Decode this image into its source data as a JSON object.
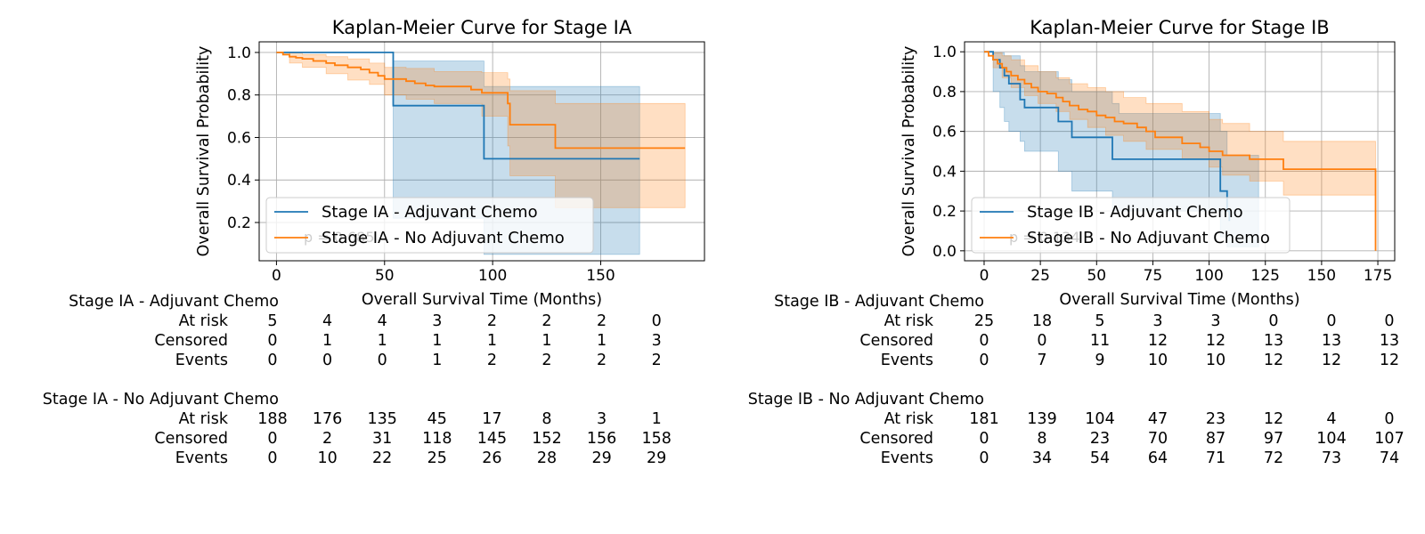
{
  "chart_data": [
    {
      "type": "line",
      "subtype": "kaplan-meier",
      "title": "Kaplan-Meier Curve for Stage IA",
      "xlabel": "Overall Survival Time (Months)",
      "ylabel": "Overall Survival Probability",
      "xlim": [
        -8,
        198
      ],
      "ylim": [
        0.02,
        1.05
      ],
      "xticks": [
        0,
        50,
        100,
        150
      ],
      "yticks": [
        0.2,
        0.4,
        0.6,
        0.8,
        1.0
      ],
      "ytick_labels": [
        "0.2",
        "0.4",
        "0.6",
        "0.8",
        "1.0"
      ],
      "grid": true,
      "legend_position": "lower-left",
      "p_value_label": "p = 0.685",
      "series": [
        {
          "name": "Stage IA - Adjuvant Chemo",
          "color": "#1f77b4",
          "steps": [
            [
              0,
              1.0
            ],
            [
              54,
              0.75
            ],
            [
              96,
              0.5
            ],
            [
              168,
              0.5
            ]
          ],
          "ci_upper": [
            [
              0,
              1.0
            ],
            [
              54,
              0.96
            ],
            [
              96,
              0.84
            ],
            [
              168,
              0.84
            ]
          ],
          "ci_lower": [
            [
              0,
              1.0
            ],
            [
              54,
              0.22
            ],
            [
              96,
              0.05
            ],
            [
              168,
              0.05
            ]
          ]
        },
        {
          "name": "Stage IA - No Adjuvant Chemo",
          "color": "#ff7f0e",
          "steps": [
            [
              0,
              1.0
            ],
            [
              3,
              0.99
            ],
            [
              6,
              0.98
            ],
            [
              9,
              0.975
            ],
            [
              12,
              0.97
            ],
            [
              17,
              0.96
            ],
            [
              23,
              0.95
            ],
            [
              27,
              0.94
            ],
            [
              33,
              0.93
            ],
            [
              39,
              0.92
            ],
            [
              43,
              0.905
            ],
            [
              47,
              0.89
            ],
            [
              50,
              0.875
            ],
            [
              60,
              0.865
            ],
            [
              64,
              0.855
            ],
            [
              69,
              0.845
            ],
            [
              73,
              0.84
            ],
            [
              90,
              0.825
            ],
            [
              95,
              0.81
            ],
            [
              107,
              0.76
            ],
            [
              108,
              0.66
            ],
            [
              129,
              0.55
            ],
            [
              189,
              0.55
            ]
          ],
          "ci_upper": [
            [
              0,
              1.0
            ],
            [
              6,
              0.998
            ],
            [
              12,
              0.99
            ],
            [
              23,
              0.98
            ],
            [
              33,
              0.97
            ],
            [
              43,
              0.95
            ],
            [
              50,
              0.93
            ],
            [
              60,
              0.925
            ],
            [
              73,
              0.91
            ],
            [
              95,
              0.905
            ],
            [
              107,
              0.875
            ],
            [
              108,
              0.82
            ],
            [
              129,
              0.76
            ],
            [
              189,
              0.76
            ]
          ],
          "ci_lower": [
            [
              0,
              1.0
            ],
            [
              6,
              0.95
            ],
            [
              12,
              0.93
            ],
            [
              23,
              0.9
            ],
            [
              33,
              0.87
            ],
            [
              43,
              0.85
            ],
            [
              50,
              0.8
            ],
            [
              60,
              0.78
            ],
            [
              73,
              0.76
            ],
            [
              95,
              0.7
            ],
            [
              107,
              0.56
            ],
            [
              108,
              0.42
            ],
            [
              129,
              0.27
            ],
            [
              189,
              0.27
            ]
          ]
        }
      ],
      "risk_table": {
        "time_points": [
          0,
          25,
          50,
          75,
          100,
          125,
          150,
          175
        ],
        "groups": [
          {
            "name": "Stage IA - Adjuvant Chemo",
            "rows": [
              {
                "label": "At risk",
                "values": [
                  "5",
                  "4",
                  "4",
                  "3",
                  "2",
                  "2",
                  "2",
                  "0"
                ]
              },
              {
                "label": "Censored",
                "values": [
                  "0",
                  "1",
                  "1",
                  "1",
                  "1",
                  "1",
                  "1",
                  "3"
                ]
              },
              {
                "label": "Events",
                "values": [
                  "0",
                  "0",
                  "0",
                  "1",
                  "2",
                  "2",
                  "2",
                  "2"
                ]
              }
            ]
          },
          {
            "name": "Stage IA - No Adjuvant Chemo",
            "rows": [
              {
                "label": "At risk",
                "values": [
                  "188",
                  "176",
                  "135",
                  "45",
                  "17",
                  "8",
                  "3",
                  "1"
                ]
              },
              {
                "label": "Censored",
                "values": [
                  "0",
                  "2",
                  "31",
                  "118",
                  "145",
                  "152",
                  "156",
                  "158"
                ]
              },
              {
                "label": "Events",
                "values": [
                  "0",
                  "10",
                  "22",
                  "25",
                  "26",
                  "28",
                  "29",
                  "29"
                ]
              }
            ]
          }
        ]
      }
    },
    {
      "type": "line",
      "subtype": "kaplan-meier",
      "title": "Kaplan-Meier Curve for Stage IB",
      "xlabel": "Overall Survival Time (Months)",
      "ylabel": "Overall Survival Probability",
      "xlim": [
        -8.7,
        182.5
      ],
      "ylim": [
        -0.05,
        1.05
      ],
      "xticks": [
        0,
        25,
        50,
        75,
        100,
        125,
        150,
        175
      ],
      "yticks": [
        0.0,
        0.2,
        0.4,
        0.6,
        0.8,
        1.0
      ],
      "ytick_labels": [
        "0.0",
        "0.2",
        "0.4",
        "0.6",
        "0.8",
        "1.0"
      ],
      "grid": true,
      "legend_position": "lower-left",
      "p_value_label": "p = 0.134",
      "series": [
        {
          "name": "Stage IB - Adjuvant Chemo",
          "color": "#1f77b4",
          "steps": [
            [
              0,
              1.0
            ],
            [
              4,
              0.96
            ],
            [
              7,
              0.92
            ],
            [
              9,
              0.88
            ],
            [
              11,
              0.84
            ],
            [
              16,
              0.76
            ],
            [
              18,
              0.72
            ],
            [
              33,
              0.65
            ],
            [
              39,
              0.57
            ],
            [
              57,
              0.46
            ],
            [
              105,
              0.3
            ],
            [
              108,
              0.2
            ],
            [
              109,
              0.15
            ]
          ],
          "ci_upper": [
            [
              0,
              1.0
            ],
            [
              4,
              0.995
            ],
            [
              9,
              0.98
            ],
            [
              16,
              0.93
            ],
            [
              18,
              0.9
            ],
            [
              33,
              0.86
            ],
            [
              39,
              0.8
            ],
            [
              57,
              0.74
            ],
            [
              60,
              0.69
            ],
            [
              105,
              0.6
            ],
            [
              108,
              0.48
            ],
            [
              122,
              0.48
            ]
          ],
          "ci_lower": [
            [
              0,
              1.0
            ],
            [
              4,
              0.8
            ],
            [
              7,
              0.72
            ],
            [
              9,
              0.65
            ],
            [
              11,
              0.6
            ],
            [
              16,
              0.55
            ],
            [
              18,
              0.5
            ],
            [
              33,
              0.4
            ],
            [
              39,
              0.3
            ],
            [
              57,
              0.2
            ],
            [
              105,
              0.07
            ],
            [
              108,
              0.02
            ],
            [
              122,
              0.02
            ]
          ]
        },
        {
          "name": "Stage IB - No Adjuvant Chemo",
          "color": "#ff7f0e",
          "steps": [
            [
              0,
              1.0
            ],
            [
              2,
              0.98
            ],
            [
              4,
              0.96
            ],
            [
              6,
              0.94
            ],
            [
              8,
              0.92
            ],
            [
              10,
              0.9
            ],
            [
              12,
              0.88
            ],
            [
              15,
              0.86
            ],
            [
              18,
              0.84
            ],
            [
              21,
              0.82
            ],
            [
              24,
              0.8
            ],
            [
              28,
              0.79
            ],
            [
              32,
              0.77
            ],
            [
              35,
              0.75
            ],
            [
              38,
              0.73
            ],
            [
              42,
              0.71
            ],
            [
              46,
              0.7
            ],
            [
              50,
              0.68
            ],
            [
              54,
              0.67
            ],
            [
              58,
              0.65
            ],
            [
              62,
              0.64
            ],
            [
              68,
              0.62
            ],
            [
              72,
              0.6
            ],
            [
              76,
              0.57
            ],
            [
              88,
              0.54
            ],
            [
              96,
              0.52
            ],
            [
              100,
              0.5
            ],
            [
              106,
              0.48
            ],
            [
              118,
              0.46
            ],
            [
              133,
              0.41
            ],
            [
              174,
              0.41
            ],
            [
              174,
              0.0
            ]
          ],
          "ci_upper": [
            [
              0,
              1.0
            ],
            [
              4,
              0.995
            ],
            [
              8,
              0.98
            ],
            [
              12,
              0.96
            ],
            [
              18,
              0.93
            ],
            [
              24,
              0.9
            ],
            [
              32,
              0.87
            ],
            [
              38,
              0.84
            ],
            [
              46,
              0.82
            ],
            [
              54,
              0.8
            ],
            [
              62,
              0.77
            ],
            [
              72,
              0.74
            ],
            [
              88,
              0.7
            ],
            [
              100,
              0.66
            ],
            [
              106,
              0.64
            ],
            [
              118,
              0.6
            ],
            [
              133,
              0.55
            ],
            [
              174,
              0.54
            ]
          ],
          "ci_lower": [
            [
              0,
              1.0
            ],
            [
              4,
              0.92
            ],
            [
              8,
              0.87
            ],
            [
              12,
              0.82
            ],
            [
              18,
              0.78
            ],
            [
              24,
              0.74
            ],
            [
              32,
              0.7
            ],
            [
              38,
              0.66
            ],
            [
              46,
              0.62
            ],
            [
              54,
              0.58
            ],
            [
              62,
              0.55
            ],
            [
              72,
              0.51
            ],
            [
              88,
              0.46
            ],
            [
              100,
              0.42
            ],
            [
              106,
              0.38
            ],
            [
              118,
              0.35
            ],
            [
              133,
              0.28
            ],
            [
              174,
              0.28
            ]
          ]
        }
      ],
      "risk_table": {
        "time_points": [
          0,
          25,
          50,
          75,
          100,
          125,
          150,
          175
        ],
        "groups": [
          {
            "name": "Stage IB - Adjuvant Chemo",
            "rows": [
              {
                "label": "At risk",
                "values": [
                  "25",
                  "18",
                  "5",
                  "3",
                  "3",
                  "0",
                  "0",
                  "0"
                ]
              },
              {
                "label": "Censored",
                "values": [
                  "0",
                  "0",
                  "11",
                  "12",
                  "12",
                  "13",
                  "13",
                  "13"
                ]
              },
              {
                "label": "Events",
                "values": [
                  "0",
                  "7",
                  "9",
                  "10",
                  "10",
                  "12",
                  "12",
                  "12"
                ]
              }
            ]
          },
          {
            "name": "Stage IB - No Adjuvant Chemo",
            "rows": [
              {
                "label": "At risk",
                "values": [
                  "181",
                  "139",
                  "104",
                  "47",
                  "23",
                  "12",
                  "4",
                  "0"
                ]
              },
              {
                "label": "Censored",
                "values": [
                  "0",
                  "8",
                  "23",
                  "70",
                  "87",
                  "97",
                  "104",
                  "107"
                ]
              },
              {
                "label": "Events",
                "values": [
                  "0",
                  "34",
                  "54",
                  "64",
                  "71",
                  "72",
                  "73",
                  "74"
                ]
              }
            ]
          }
        ]
      }
    }
  ]
}
